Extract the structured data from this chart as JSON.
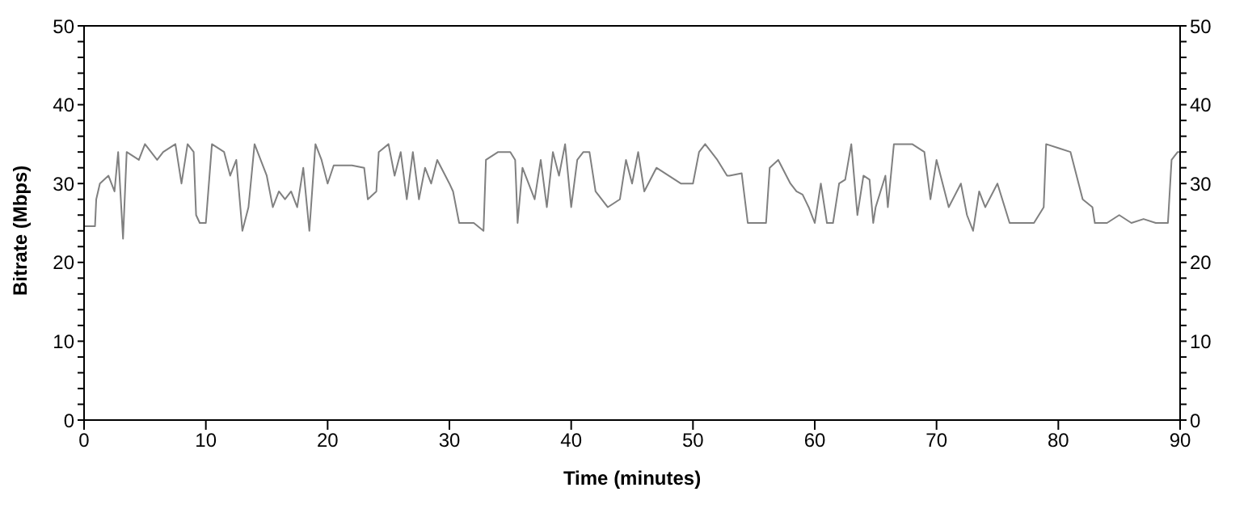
{
  "chart_data": {
    "type": "line",
    "xlabel": "Time (minutes)",
    "ylabel": "Bitrate (Mbps)",
    "xlim": [
      0,
      90
    ],
    "xticks": [
      0,
      10,
      20,
      30,
      40,
      50,
      60,
      70,
      80,
      90
    ],
    "ylim": [
      0,
      50
    ],
    "yticks": [
      0,
      {
        "value": 2,
        "label": null
      },
      {
        "value": 4,
        "label": null
      },
      {
        "value": 6,
        "label": null
      },
      {
        "value": 8,
        "label": null
      },
      10,
      {
        "value": 12,
        "label": null
      },
      {
        "value": 14,
        "label": null
      },
      {
        "value": 16,
        "label": null
      },
      {
        "value": 18,
        "label": null
      },
      20,
      {
        "value": 22,
        "label": null
      },
      {
        "value": 24,
        "label": null
      },
      {
        "value": 26,
        "label": null
      },
      {
        "value": 28,
        "label": null
      },
      30,
      {
        "value": 32,
        "label": null
      },
      {
        "value": 34,
        "label": null
      },
      {
        "value": 36,
        "label": null
      },
      {
        "value": 38,
        "label": null
      },
      40,
      {
        "value": 42,
        "label": null
      },
      {
        "value": 44,
        "label": null
      },
      {
        "value": 46,
        "label": null
      },
      {
        "value": 48,
        "label": null
      },
      50
    ],
    "y2lim": [
      0,
      50
    ],
    "y2ticks": [
      0,
      {
        "value": 2,
        "label": null
      },
      {
        "value": 4,
        "label": null
      },
      {
        "value": 6,
        "label": null
      },
      {
        "value": 8,
        "label": null
      },
      10,
      {
        "value": 12,
        "label": null
      },
      {
        "value": 14,
        "label": null
      },
      {
        "value": 16,
        "label": null
      },
      {
        "value": 18,
        "label": null
      },
      20,
      {
        "value": 22,
        "label": null
      },
      {
        "value": 24,
        "label": null
      },
      {
        "value": 26,
        "label": null
      },
      {
        "value": 28,
        "label": null
      },
      30,
      {
        "value": 32,
        "label": null
      },
      {
        "value": 34,
        "label": null
      },
      {
        "value": 36,
        "label": null
      },
      {
        "value": 38,
        "label": null
      },
      40,
      {
        "value": 42,
        "label": null
      },
      {
        "value": 44,
        "label": null
      },
      {
        "value": 46,
        "label": null
      },
      {
        "value": 48,
        "label": null
      },
      50
    ],
    "marker": "none",
    "line_style": "solid",
    "series": [
      {
        "color": "#808080",
        "x": [
          0,
          0.9,
          1.0,
          1.3,
          2,
          2.5,
          2.8,
          3.2,
          3.5,
          4.5,
          5,
          6,
          6.5,
          7.5,
          8,
          8.5,
          9,
          9.2,
          9.5,
          10,
          10.5,
          11.5,
          12,
          12.5,
          13,
          13.5,
          14,
          15,
          15.5,
          16,
          16.5,
          17,
          17.5,
          18,
          18.5,
          19,
          19.5,
          20,
          20.5,
          22,
          23,
          23.3,
          24,
          24.2,
          25,
          25.5,
          26,
          26.5,
          27,
          27.5,
          28,
          28.5,
          29,
          30,
          30.3,
          30.8,
          31,
          32,
          32.8,
          33,
          34,
          35,
          35.4,
          35.6,
          36,
          37,
          37.5,
          38,
          38.5,
          39,
          39.5,
          40,
          40.5,
          41,
          41.5,
          42,
          42.5,
          43,
          44,
          44.5,
          45,
          45.5,
          46,
          47,
          48,
          49,
          50,
          50.5,
          51,
          52,
          52.8,
          53,
          54,
          54.5,
          56,
          56.3,
          57,
          58,
          58.5,
          59,
          59.5,
          60,
          60.5,
          61,
          61.5,
          62,
          62.5,
          63,
          63.5,
          64,
          64.5,
          64.8,
          65,
          65.8,
          66,
          66.5,
          67,
          68,
          69,
          69.5,
          70,
          71,
          72,
          72.5,
          73,
          73.5,
          74,
          75,
          76,
          77,
          78,
          78.8,
          79,
          80,
          81,
          82,
          82.8,
          83,
          84,
          85,
          86,
          87,
          88,
          89,
          89.3,
          89.8,
          90
        ],
        "values": [
          24.6,
          24.6,
          28,
          30,
          31,
          29,
          34,
          23,
          34,
          33,
          35,
          33,
          34,
          35,
          30,
          35,
          34,
          26,
          25,
          25,
          35,
          34,
          31,
          33,
          24,
          27,
          35,
          31,
          27,
          29,
          28,
          29,
          27,
          32,
          24,
          35,
          33,
          30,
          32.3,
          32.3,
          32,
          28,
          29,
          34,
          35,
          31,
          34,
          28,
          34,
          28,
          32,
          30,
          33,
          30,
          29,
          25,
          25,
          25,
          24,
          33,
          34,
          34,
          33,
          25,
          32,
          28,
          33,
          27,
          34,
          31,
          35,
          27,
          33,
          34,
          34,
          29,
          28,
          27,
          28,
          33,
          30,
          34,
          29,
          32,
          31,
          30,
          30,
          34,
          35,
          33,
          31,
          31,
          31.3,
          25,
          25,
          32,
          33,
          30,
          29,
          28.6,
          27,
          25,
          30,
          25,
          25,
          30,
          30.5,
          35,
          26,
          31,
          30.5,
          25,
          27,
          31,
          27,
          35,
          35,
          35,
          34,
          28,
          33,
          27,
          30,
          26,
          24,
          29,
          27,
          30,
          25,
          25,
          25,
          27,
          35,
          34.5,
          34,
          28,
          27,
          25,
          25,
          26,
          25,
          25.5,
          25,
          25,
          33,
          34,
          34
        ]
      }
    ]
  }
}
